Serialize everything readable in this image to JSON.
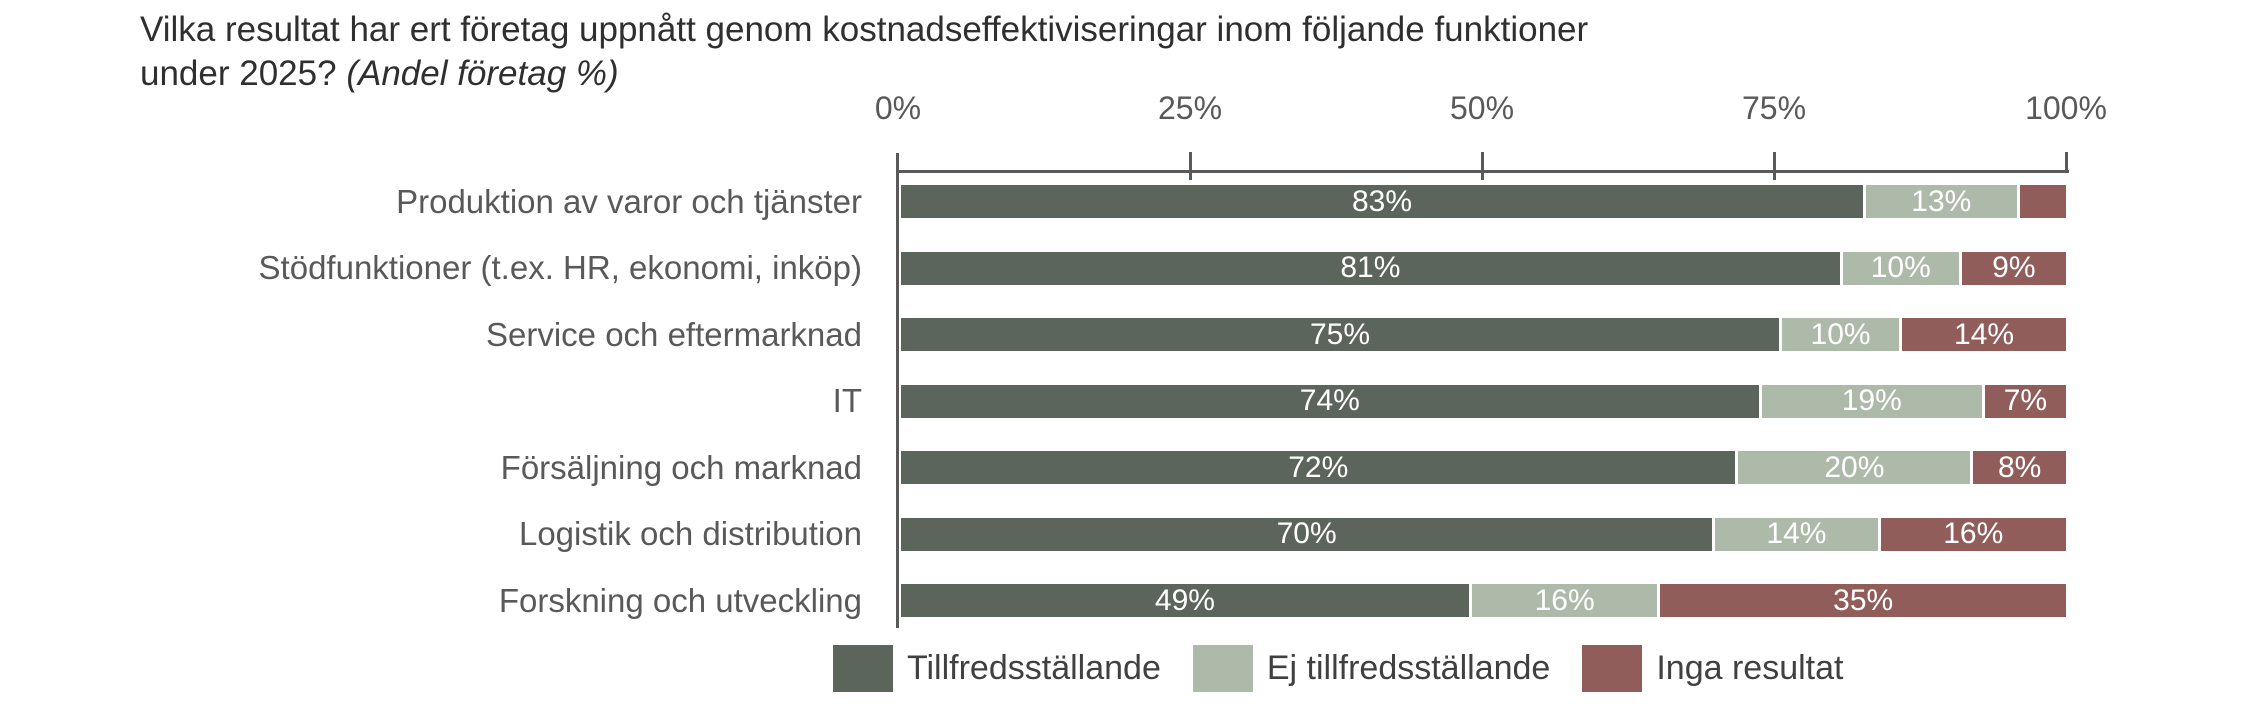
{
  "title": {
    "line1": "Vilka resultat har ert företag uppnått genom kostnadseffektiviseringar inom följande funktioner",
    "line2": "under 2025?",
    "suffix_italic": "(Andel företag %)"
  },
  "colors": {
    "satisfactory": "#5B655B",
    "unsatisfactory": "#ADBAAA",
    "no_results": "#905D5B",
    "axis": "#595959",
    "tick_text": "#595959",
    "category_text": "#595959",
    "title_text": "#2f2f2f",
    "value_text": "#ffffff",
    "background": "#ffffff"
  },
  "chart_data": {
    "type": "bar",
    "orientation": "horizontal-stacked",
    "title": "Vilka resultat har ert företag uppnått genom kostnadseffektiviseringar inom följande funktioner under 2025? (Andel företag %)",
    "xlabel": "",
    "ylabel": "",
    "xlim": [
      0,
      100
    ],
    "x_ticks": [
      "0%",
      "25%",
      "50%",
      "75%",
      "100%"
    ],
    "grid": false,
    "legend_position": "bottom",
    "categories": [
      "Produktion av varor och tjänster",
      "Stödfunktioner (t.ex. HR, ekonomi, inköp)",
      "Service och eftermarknad",
      "IT",
      "Försäljning och marknad",
      "Logistik och distribution",
      "Forskning och utveckling"
    ],
    "series": [
      {
        "name": "Tillfredsställande",
        "color": "#5B655B",
        "values": [
          83,
          81,
          75,
          74,
          72,
          70,
          49
        ],
        "labels": [
          "83%",
          "81%",
          "75%",
          "74%",
          "72%",
          "70%",
          "49%"
        ]
      },
      {
        "name": "Ej tillfredsställande",
        "color": "#ADBAAA",
        "values": [
          13,
          10,
          10,
          19,
          20,
          14,
          16
        ],
        "labels": [
          "13%",
          "10%",
          "10%",
          "19%",
          "20%",
          "14%",
          "16%"
        ]
      },
      {
        "name": "Inga resultat",
        "color": "#905D5B",
        "values": [
          4,
          9,
          14,
          7,
          8,
          16,
          35
        ],
        "labels": [
          "",
          "9%",
          "14%",
          "7%",
          "8%",
          "16%",
          "35%"
        ]
      }
    ]
  }
}
